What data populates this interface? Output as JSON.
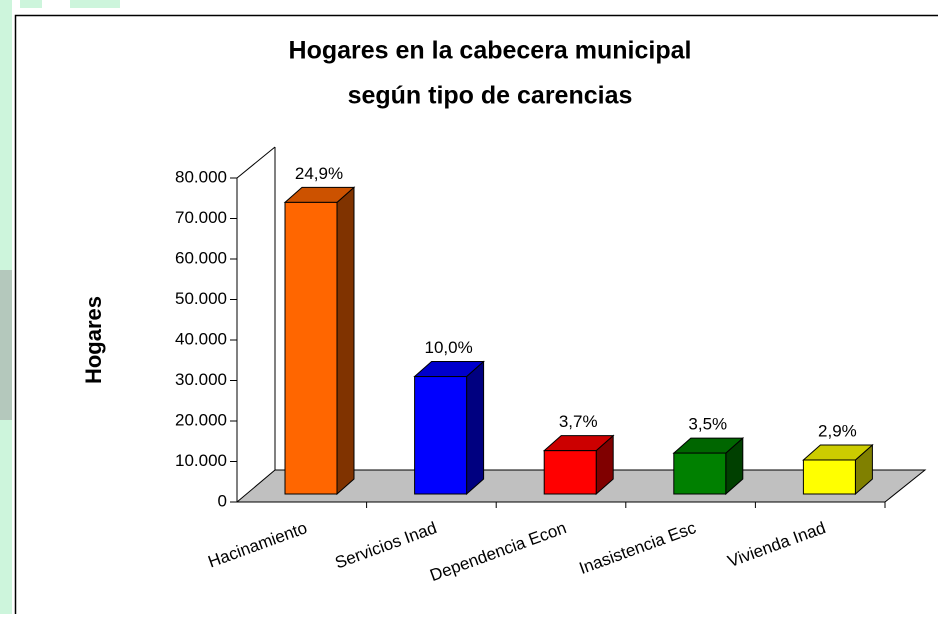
{
  "chart_data": {
    "type": "bar3d",
    "title": [
      "Hogares en la cabecera municipal",
      "según tipo de carencias"
    ],
    "y_label": "Hogares",
    "categories": [
      "Hacinamiento",
      "Servicios Inad",
      "Dependencia Econ",
      "Inasistencia Esc",
      "Vivienda Inad"
    ],
    "values": [
      72000,
      29000,
      10700,
      10100,
      8400
    ],
    "bar_labels": [
      "24,9%",
      "10,0%",
      "3,7%",
      "3,5%",
      "2,9%"
    ],
    "colors": [
      "#ff6600",
      "#0000ff",
      "#ff0000",
      "#008000",
      "#ffff00"
    ],
    "ylim": [
      0,
      80000
    ],
    "yticks": [
      0,
      {
        "value": 10000,
        "label": "10.000"
      },
      {
        "value": 20000,
        "label": "20.000"
      },
      {
        "value": 30000,
        "label": "30.000"
      },
      {
        "value": 40000,
        "label": "40.000"
      },
      {
        "value": 50000,
        "label": "50.000"
      },
      {
        "value": 60000,
        "label": "60.000"
      },
      {
        "value": 70000,
        "label": "70.000"
      },
      {
        "value": 80000,
        "label": "80.000"
      }
    ]
  }
}
